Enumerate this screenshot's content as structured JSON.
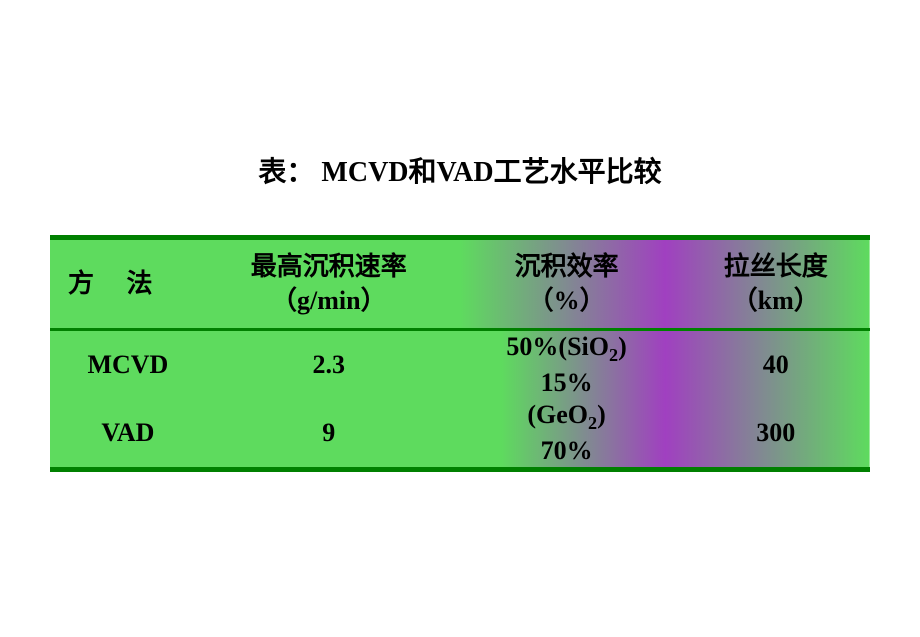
{
  "title": {
    "prefix": "表：",
    "text": " MCVD和VAD工艺水平比较"
  },
  "table": {
    "columns": {
      "method": {
        "label": "方 法",
        "unit": ""
      },
      "rate": {
        "label": "最高沉积速率",
        "unit": "（g/min）"
      },
      "efficiency": {
        "label": "沉积效率",
        "unit": "（%）"
      },
      "length": {
        "label": "拉丝长度",
        "unit": "（km）"
      }
    },
    "rows": [
      {
        "method": "MCVD",
        "rate": "2.3",
        "eff_pct_a": "50%",
        "eff_mat_a": "(SiO",
        "eff_sub_a": "2",
        "eff_close_a": ")",
        "eff_pct_b": "15%",
        "length": "40"
      },
      {
        "method": "VAD",
        "rate": "9",
        "eff_mat_a": "(GeO",
        "eff_sub_a": "2",
        "eff_close_a": ")",
        "eff_pct_b": "70%",
        "length": "300"
      }
    ],
    "colors": {
      "border": "#008000",
      "grad_green": "#5edb5e",
      "grad_purple": "#a040c0",
      "text": "#000000"
    },
    "fontsize": {
      "title": 28,
      "header": 26,
      "cell": 26
    }
  }
}
